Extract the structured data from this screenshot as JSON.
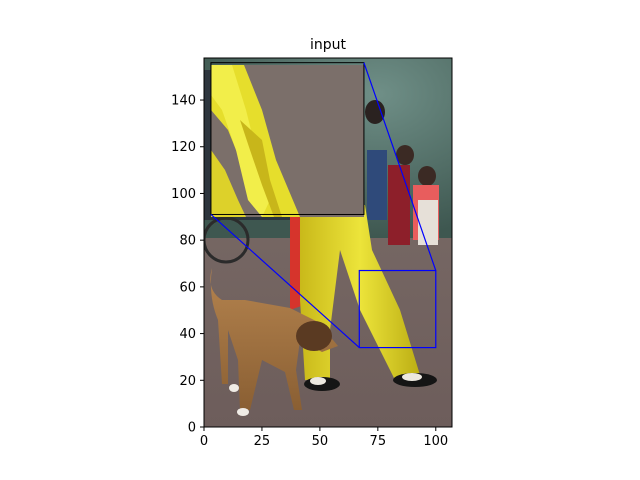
{
  "chart_data": {
    "type": "image",
    "title": "input",
    "xlabel": "",
    "ylabel": "",
    "xlim": [
      0,
      107
    ],
    "ylim": [
      0,
      158
    ],
    "xticks": [
      0,
      25,
      50,
      75,
      100
    ],
    "yticks": [
      0,
      20,
      40,
      60,
      80,
      100,
      120,
      140
    ],
    "image_content": "photo of a person in yellow trousers with a red cape walking on pavement beside a brown dog, spectators in the background",
    "zoom_region": {
      "x": [
        67,
        100
      ],
      "y": [
        34,
        67
      ]
    },
    "inset_region": {
      "x": [
        3,
        69
      ],
      "y": [
        91,
        156
      ]
    },
    "indicator_color": "#0000ff",
    "grid": false
  }
}
